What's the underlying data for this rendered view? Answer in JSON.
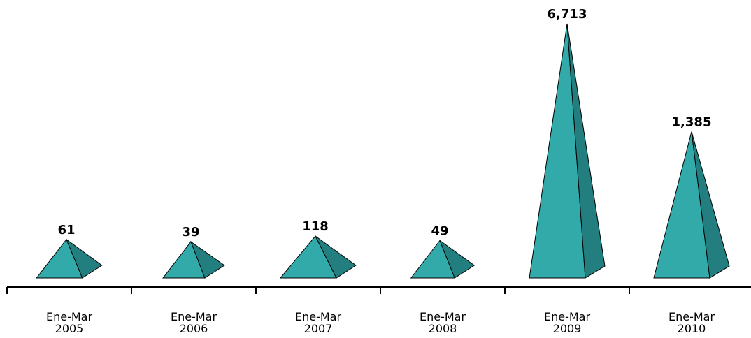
{
  "chart_data": {
    "type": "bar",
    "mark": "pyramid",
    "categories": [
      [
        "Ene-Mar",
        "2005"
      ],
      [
        "Ene-Mar",
        "2006"
      ],
      [
        "Ene-Mar",
        "2007"
      ],
      [
        "Ene-Mar",
        "2008"
      ],
      [
        "Ene-Mar",
        "2009"
      ],
      [
        "Ene-Mar",
        "2010"
      ]
    ],
    "values": [
      61,
      39,
      118,
      49,
      6713,
      1385
    ],
    "value_labels": [
      "61",
      "39",
      "118",
      "49",
      "6,713",
      "1,385"
    ],
    "title": "",
    "xlabel": "",
    "ylabel": "",
    "grid": false,
    "legend": "none",
    "colors": {
      "front": "#33aaaa",
      "side": "#237f7f",
      "stroke": "#000000",
      "axis": "#000000"
    }
  }
}
